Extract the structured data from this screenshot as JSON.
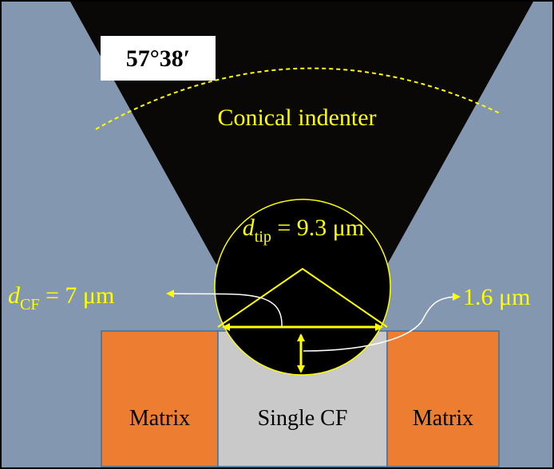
{
  "angle_label": "57°38′",
  "indenter_label": "Conical indenter",
  "tip_diameter": {
    "symbol": "d",
    "subscript": "tip",
    "text": " = 9.3 μm"
  },
  "fiber_diameter": {
    "symbol": "d",
    "subscript": "CF",
    "text": " = 7 μm"
  },
  "depth_label": "1.6 μm",
  "blocks": [
    "Matrix",
    "Single CF",
    "Matrix"
  ]
}
